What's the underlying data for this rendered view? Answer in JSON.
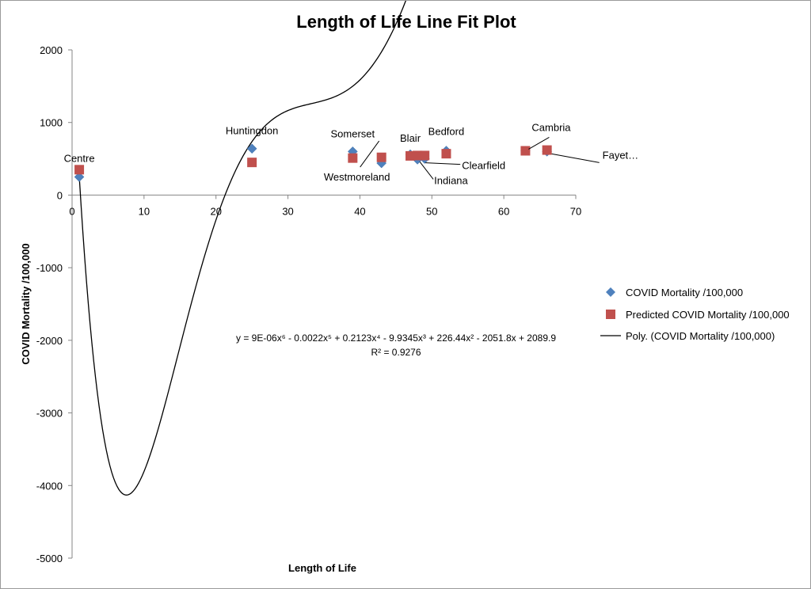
{
  "chart_data": {
    "type": "scatter",
    "title": "Length of Life Line Fit  Plot",
    "xlabel": "Length of Life",
    "ylabel": "COVID Mortality /100,000",
    "xlim": [
      0,
      70
    ],
    "ylim": [
      -5000,
      2000
    ],
    "x_ticks": [
      0,
      10,
      20,
      30,
      40,
      50,
      60,
      70
    ],
    "y_ticks": [
      -5000,
      -4000,
      -3000,
      -2000,
      -1000,
      0,
      1000,
      2000
    ],
    "grid": false,
    "legend_position": "right",
    "series": [
      {
        "name": "COVID Mortality /100,000",
        "marker": "diamond",
        "color": "#4f81bd",
        "points": [
          {
            "x": 1,
            "y": 250
          },
          {
            "x": 25,
            "y": 640
          },
          {
            "x": 39,
            "y": 600
          },
          {
            "x": 43,
            "y": 440
          },
          {
            "x": 47,
            "y": 560
          },
          {
            "x": 48,
            "y": 490
          },
          {
            "x": 49,
            "y": 500
          },
          {
            "x": 52,
            "y": 610
          },
          {
            "x": 63,
            "y": 610
          },
          {
            "x": 66,
            "y": 600
          }
        ]
      },
      {
        "name": "Predicted COVID Mortality /100,000",
        "marker": "square",
        "color": "#c0504d",
        "points": [
          {
            "x": 1,
            "y": 350
          },
          {
            "x": 25,
            "y": 450
          },
          {
            "x": 39,
            "y": 510
          },
          {
            "x": 43,
            "y": 520
          },
          {
            "x": 47,
            "y": 540
          },
          {
            "x": 48,
            "y": 545
          },
          {
            "x": 49,
            "y": 545
          },
          {
            "x": 52,
            "y": 570
          },
          {
            "x": 63,
            "y": 610
          },
          {
            "x": 66,
            "y": 620
          }
        ]
      }
    ],
    "trendline": {
      "name": "Poly. (COVID Mortality /100,000)",
      "color": "#000000",
      "equation": "y = 9E-06x⁶ - 0.0022x⁵ + 0.2123x⁴ - 9.9345x³ + 226.44x² - 2051.8x + 2089.9",
      "r_squared": "R² = 0.9276"
    },
    "point_labels": [
      {
        "text": "Centre",
        "x": 1,
        "y": 350
      },
      {
        "text": "Huntingdon",
        "x": 25,
        "y": 640
      },
      {
        "text": "Somerset",
        "x": 39,
        "y": 600
      },
      {
        "text": "Westmoreland",
        "x": 43,
        "y": 440
      },
      {
        "text": "Blair",
        "x": 47,
        "y": 560
      },
      {
        "text": "Indiana",
        "x": 48,
        "y": 490
      },
      {
        "text": "Clearfield",
        "x": 49,
        "y": 500
      },
      {
        "text": "Bedford",
        "x": 52,
        "y": 610
      },
      {
        "text": "Cambria",
        "x": 63,
        "y": 610
      },
      {
        "text": "Fayet…",
        "x": 66,
        "y": 600
      }
    ]
  }
}
